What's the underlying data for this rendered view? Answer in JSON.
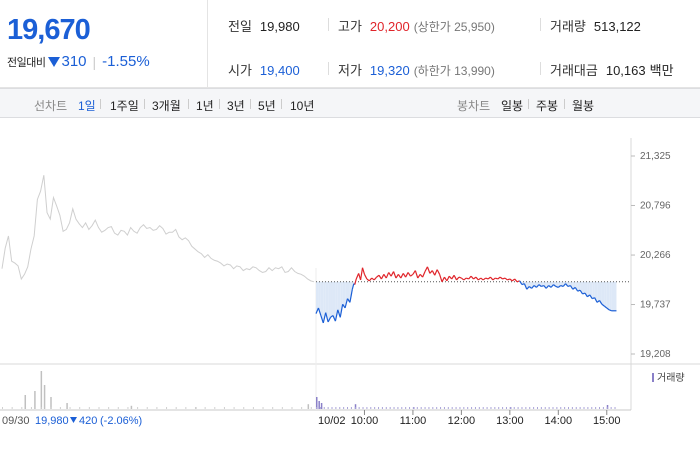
{
  "summary": {
    "price": "19,670",
    "change_label": "전일대비",
    "change_icon": "down-triangle-icon",
    "change_value": "310",
    "change_rate": "-1.55%"
  },
  "stats": {
    "prev_close_label": "전일",
    "prev_close": "19,980",
    "high_label": "고가",
    "high": "20,200",
    "upper_limit": "(상한가 25,950)",
    "volume_label": "거래량",
    "volume": "513,122",
    "open_label": "시가",
    "open": "19,400",
    "low_label": "저가",
    "low": "19,320",
    "lower_limit": "(하한가 13,990)",
    "amount_label": "거래대금",
    "amount": "10,163",
    "amount_unit": "백만"
  },
  "period": {
    "line_label": "선차트",
    "line_items": [
      "1일",
      "1주일",
      "3개월",
      "1년",
      "3년",
      "5년",
      "10년"
    ],
    "active_index": 0,
    "candle_label": "봉차트",
    "candle_items": [
      "일봉",
      "주봉",
      "월봉"
    ]
  },
  "chart_data": {
    "type": "line",
    "ylim": [
      19208,
      21325
    ],
    "y_ticks": [
      "21,325",
      "20,796",
      "20,266",
      "19,737",
      "19,208"
    ],
    "y_tick_values": [
      21325,
      20796,
      20266,
      19737,
      19208
    ],
    "x_ticks": [
      "10:00",
      "11:00",
      "12:00",
      "13:00",
      "14:00",
      "15:00"
    ],
    "x_tick_hours": [
      10,
      11,
      12,
      13,
      14,
      15
    ],
    "day_marker": "10/02",
    "reference_line": 19980,
    "prev_day": {
      "date": "09/30",
      "close": "19,980",
      "change": "420",
      "rate": "(-2.06%)"
    },
    "volume_legend": "거래량",
    "colors": {
      "up": "#e0242a",
      "down": "#1b5fd6",
      "prev": "#cfcfcf",
      "fill": "#dde8f7"
    },
    "prev_series": [
      20120,
      20340,
      20470,
      20200,
      20180,
      20150,
      20010,
      20060,
      20140,
      20330,
      20470,
      20860,
      20950,
      21120,
      20720,
      20650,
      20880,
      20790,
      20690,
      20520,
      20540,
      20610,
      20760,
      20650,
      20600,
      20560,
      20610,
      20540,
      20580,
      20640,
      20560,
      20510,
      20530,
      20560,
      20570,
      20500,
      20480,
      20530,
      20520,
      20480,
      20560,
      20520,
      20500,
      20560,
      20590,
      20550,
      20560,
      20530,
      20540,
      20580,
      20550,
      20490,
      20510,
      20510,
      20540,
      20460,
      20430,
      20450,
      20420,
      20360,
      20330,
      20300,
      20280,
      20240,
      20270,
      20230,
      20210,
      20200,
      20180,
      20150,
      20170,
      20160,
      20120,
      20150,
      20140,
      20100,
      20120,
      20110,
      20140,
      20130,
      20100,
      20080,
      20090,
      20130,
      20100,
      20130,
      20120,
      20140,
      20080,
      20090,
      20130,
      20090,
      20070,
      20060,
      20040,
      20010,
      19990,
      19980
    ],
    "today_series": [
      {
        "h": 9.0,
        "v": 19640
      },
      {
        "h": 9.05,
        "v": 19700
      },
      {
        "h": 9.1,
        "v": 19620
      },
      {
        "h": 9.15,
        "v": 19540
      },
      {
        "h": 9.2,
        "v": 19650
      },
      {
        "h": 9.25,
        "v": 19550
      },
      {
        "h": 9.3,
        "v": 19600
      },
      {
        "h": 9.35,
        "v": 19620
      },
      {
        "h": 9.4,
        "v": 19560
      },
      {
        "h": 9.45,
        "v": 19680
      },
      {
        "h": 9.5,
        "v": 19600
      },
      {
        "h": 9.55,
        "v": 19740
      },
      {
        "h": 9.6,
        "v": 19700
      },
      {
        "h": 9.65,
        "v": 19800
      },
      {
        "h": 9.7,
        "v": 19760
      },
      {
        "h": 9.75,
        "v": 19900
      },
      {
        "h": 9.78,
        "v": 19960
      },
      {
        "h": 9.8,
        "v": 19950
      },
      {
        "h": 9.83,
        "v": 20010
      },
      {
        "h": 9.88,
        "v": 20070
      },
      {
        "h": 9.92,
        "v": 20000
      },
      {
        "h": 9.96,
        "v": 20130
      },
      {
        "h": 10.0,
        "v": 20060
      },
      {
        "h": 10.05,
        "v": 20010
      },
      {
        "h": 10.1,
        "v": 19990
      },
      {
        "h": 10.15,
        "v": 20020
      },
      {
        "h": 10.2,
        "v": 20000
      },
      {
        "h": 10.25,
        "v": 20030
      },
      {
        "h": 10.3,
        "v": 20050
      },
      {
        "h": 10.35,
        "v": 20010
      },
      {
        "h": 10.4,
        "v": 20060
      },
      {
        "h": 10.45,
        "v": 20020
      },
      {
        "h": 10.5,
        "v": 20080
      },
      {
        "h": 10.55,
        "v": 20040
      },
      {
        "h": 10.6,
        "v": 20090
      },
      {
        "h": 10.65,
        "v": 20020
      },
      {
        "h": 10.7,
        "v": 20060
      },
      {
        "h": 10.75,
        "v": 20020
      },
      {
        "h": 10.8,
        "v": 20070
      },
      {
        "h": 10.85,
        "v": 20030
      },
      {
        "h": 10.9,
        "v": 20080
      },
      {
        "h": 10.95,
        "v": 20040
      },
      {
        "h": 11.0,
        "v": 20060
      },
      {
        "h": 11.05,
        "v": 20100
      },
      {
        "h": 11.1,
        "v": 20020
      },
      {
        "h": 11.15,
        "v": 20060
      },
      {
        "h": 11.2,
        "v": 20030
      },
      {
        "h": 11.25,
        "v": 20090
      },
      {
        "h": 11.3,
        "v": 20140
      },
      {
        "h": 11.35,
        "v": 20070
      },
      {
        "h": 11.4,
        "v": 20100
      },
      {
        "h": 11.45,
        "v": 20050
      },
      {
        "h": 11.5,
        "v": 20110
      },
      {
        "h": 11.55,
        "v": 20060
      },
      {
        "h": 11.6,
        "v": 19980
      },
      {
        "h": 11.65,
        "v": 20030
      },
      {
        "h": 11.7,
        "v": 19990
      },
      {
        "h": 11.75,
        "v": 20040
      },
      {
        "h": 11.8,
        "v": 20010
      },
      {
        "h": 11.85,
        "v": 20050
      },
      {
        "h": 11.9,
        "v": 20000
      },
      {
        "h": 11.95,
        "v": 20030
      },
      {
        "h": 12.0,
        "v": 20020
      },
      {
        "h": 12.05,
        "v": 20000
      },
      {
        "h": 12.1,
        "v": 20020
      },
      {
        "h": 12.15,
        "v": 20010
      },
      {
        "h": 12.2,
        "v": 20040
      },
      {
        "h": 12.25,
        "v": 20010
      },
      {
        "h": 12.3,
        "v": 20030
      },
      {
        "h": 12.35,
        "v": 20000
      },
      {
        "h": 12.4,
        "v": 20020
      },
      {
        "h": 12.45,
        "v": 20000
      },
      {
        "h": 12.5,
        "v": 20020
      },
      {
        "h": 12.55,
        "v": 20010
      },
      {
        "h": 12.6,
        "v": 20030
      },
      {
        "h": 12.65,
        "v": 20000
      },
      {
        "h": 12.7,
        "v": 20020
      },
      {
        "h": 12.75,
        "v": 20010
      },
      {
        "h": 12.8,
        "v": 20030
      },
      {
        "h": 12.85,
        "v": 20010
      },
      {
        "h": 12.9,
        "v": 20020
      },
      {
        "h": 12.95,
        "v": 20000
      },
      {
        "h": 13.0,
        "v": 20010
      },
      {
        "h": 13.05,
        "v": 19990
      },
      {
        "h": 13.1,
        "v": 20010
      },
      {
        "h": 13.15,
        "v": 19980
      },
      {
        "h": 13.2,
        "v": 19990
      },
      {
        "h": 13.25,
        "v": 19950
      },
      {
        "h": 13.3,
        "v": 19960
      },
      {
        "h": 13.35,
        "v": 19900
      },
      {
        "h": 13.4,
        "v": 19930
      },
      {
        "h": 13.45,
        "v": 19910
      },
      {
        "h": 13.5,
        "v": 19940
      },
      {
        "h": 13.55,
        "v": 19920
      },
      {
        "h": 13.6,
        "v": 19950
      },
      {
        "h": 13.65,
        "v": 19930
      },
      {
        "h": 13.7,
        "v": 19940
      },
      {
        "h": 13.75,
        "v": 19910
      },
      {
        "h": 13.8,
        "v": 19940
      },
      {
        "h": 13.85,
        "v": 19920
      },
      {
        "h": 13.9,
        "v": 19950
      },
      {
        "h": 13.95,
        "v": 19930
      },
      {
        "h": 14.0,
        "v": 19920
      },
      {
        "h": 14.05,
        "v": 19940
      },
      {
        "h": 14.1,
        "v": 19930
      },
      {
        "h": 14.15,
        "v": 19960
      },
      {
        "h": 14.2,
        "v": 19930
      },
      {
        "h": 14.25,
        "v": 19940
      },
      {
        "h": 14.3,
        "v": 19900
      },
      {
        "h": 14.35,
        "v": 19920
      },
      {
        "h": 14.4,
        "v": 19880
      },
      {
        "h": 14.45,
        "v": 19890
      },
      {
        "h": 14.5,
        "v": 19850
      },
      {
        "h": 14.55,
        "v": 19860
      },
      {
        "h": 14.6,
        "v": 19820
      },
      {
        "h": 14.65,
        "v": 19840
      },
      {
        "h": 14.7,
        "v": 19800
      },
      {
        "h": 14.75,
        "v": 19810
      },
      {
        "h": 14.8,
        "v": 19760
      },
      {
        "h": 14.85,
        "v": 19780
      },
      {
        "h": 14.9,
        "v": 19740
      },
      {
        "h": 14.95,
        "v": 19720
      },
      {
        "h": 15.0,
        "v": 19700
      },
      {
        "h": 15.05,
        "v": 19680
      },
      {
        "h": 15.1,
        "v": 19670
      },
      {
        "h": 15.2,
        "v": 19670
      }
    ],
    "prev_volume_spikes": [
      {
        "i": 7,
        "v": 0.35
      },
      {
        "i": 10,
        "v": 0.45
      },
      {
        "i": 12,
        "v": 0.95
      },
      {
        "i": 13,
        "v": 0.6
      },
      {
        "i": 15,
        "v": 0.3
      },
      {
        "i": 20,
        "v": 0.15
      },
      {
        "i": 40,
        "v": 0.08
      },
      {
        "i": 60,
        "v": 0.05
      },
      {
        "i": 95,
        "v": 0.12
      }
    ],
    "today_volume_spikes": [
      {
        "h": 9.0,
        "v": 0.3
      },
      {
        "h": 9.05,
        "v": 0.2
      },
      {
        "h": 9.1,
        "v": 0.15
      },
      {
        "h": 9.8,
        "v": 0.12
      },
      {
        "h": 11.0,
        "v": 0.05
      },
      {
        "h": 13.0,
        "v": 0.05
      },
      {
        "h": 15.0,
        "v": 0.1
      }
    ]
  }
}
